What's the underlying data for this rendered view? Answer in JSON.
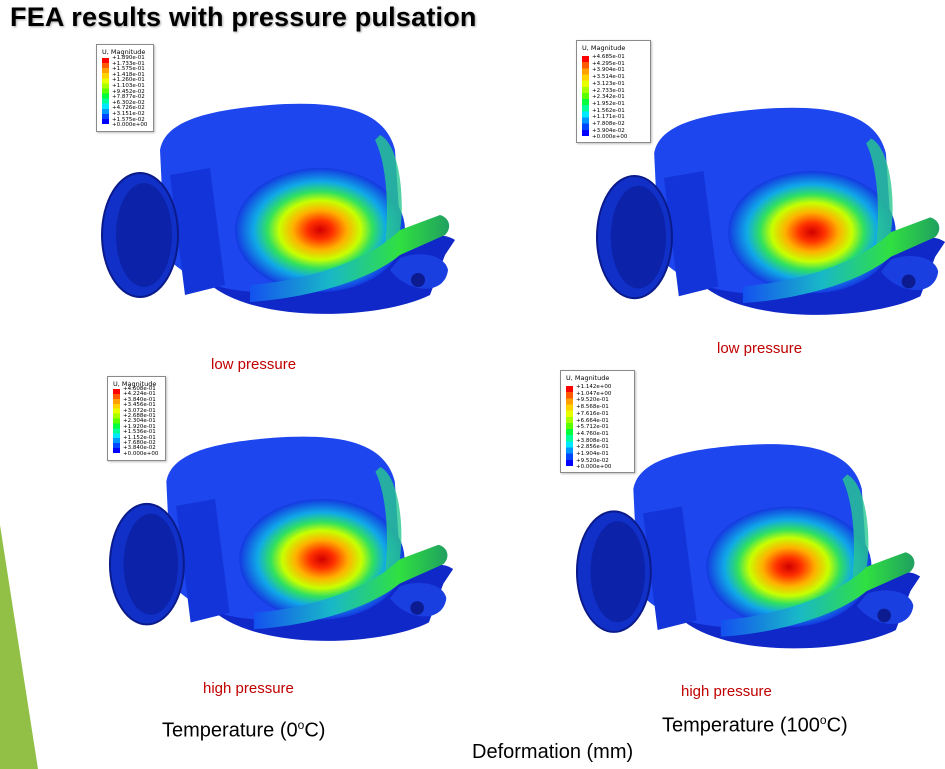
{
  "slide": {
    "title": "FEA results with pressure pulsation",
    "accent_color": "#92c047",
    "bottom_label": "Deformation (mm)"
  },
  "columns": [
    {
      "temperature_prefix": "Temperature (0",
      "temperature_sup": "o",
      "temperature_suffix": "C)"
    },
    {
      "temperature_prefix": "Temperature (100",
      "temperature_sup": "o",
      "temperature_suffix": "C)"
    }
  ],
  "panels": [
    {
      "caption": "low pressure",
      "legend_title": "U, Magnitude",
      "legend_values": [
        "+1.890e-01",
        "+1.733e-01",
        "+1.575e-01",
        "+1.418e-01",
        "+1.260e-01",
        "+1.103e-01",
        "+9.452e-02",
        "+7.877e-02",
        "+6.302e-02",
        "+4.726e-02",
        "+3.151e-02",
        "+1.575e-02",
        "+0.000e+00"
      ]
    },
    {
      "caption": "low pressure",
      "legend_title": "U, Magnitude",
      "legend_values": [
        "+4.685e-01",
        "+4.295e-01",
        "+3.904e-01",
        "+3.514e-01",
        "+3.123e-01",
        "+2.733e-01",
        "+2.342e-01",
        "+1.952e-01",
        "+1.562e-01",
        "+1.171e-01",
        "+7.808e-02",
        "+3.904e-02",
        "+0.000e+00"
      ]
    },
    {
      "caption": "high pressure",
      "legend_title": "U, Magnitude",
      "legend_values": [
        "+4.608e-01",
        "+4.224e-01",
        "+3.840e-01",
        "+3.456e-01",
        "+3.072e-01",
        "+2.688e-01",
        "+2.304e-01",
        "+1.920e-01",
        "+1.536e-01",
        "+1.152e-01",
        "+7.680e-02",
        "+3.840e-02",
        "+0.000e+00"
      ]
    },
    {
      "caption": "high pressure",
      "legend_title": "U, Magnitude",
      "legend_values": [
        "+1.142e+00",
        "+1.047e+00",
        "+9.520e-01",
        "+8.568e-01",
        "+7.616e-01",
        "+6.664e-01",
        "+5.712e-01",
        "+4.760e-01",
        "+3.808e-01",
        "+2.856e-01",
        "+1.904e-01",
        "+9.520e-02",
        "+0.000e+00"
      ]
    }
  ],
  "contour_colors": [
    "#ff0000",
    "#ff5a00",
    "#ffa000",
    "#ffd200",
    "#e8ff00",
    "#a8ff00",
    "#5aff00",
    "#00ff3c",
    "#00ff9a",
    "#00e8ff",
    "#0096ff",
    "#0046ff",
    "#0000ff"
  ]
}
